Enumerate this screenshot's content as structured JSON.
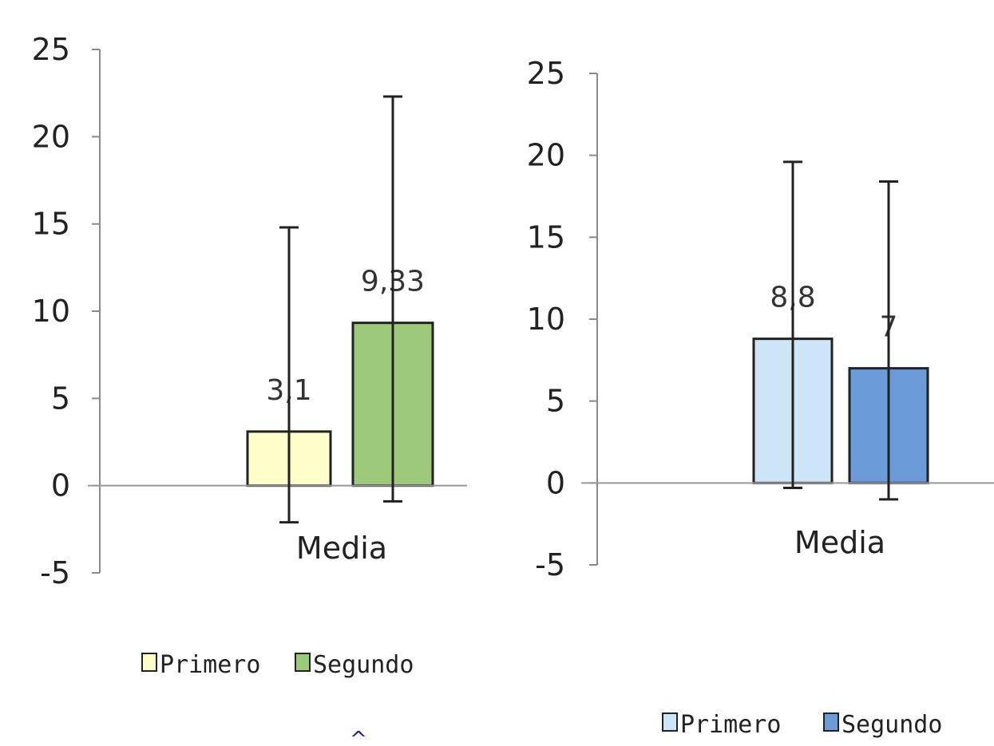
{
  "chart_data": [
    {
      "type": "bar",
      "categories": [
        "Media"
      ],
      "series": [
        {
          "name": "Primero",
          "values": [
            3.1
          ],
          "error_low": [
            -2.1
          ],
          "error_high": [
            14.8
          ],
          "color": "#ffffcc",
          "label": "3,1"
        },
        {
          "name": "Segundo",
          "values": [
            9.33
          ],
          "error_low": [
            -0.9
          ],
          "error_high": [
            22.3
          ],
          "color": "#9cc97a",
          "label": "9,33"
        }
      ],
      "yticks": [
        "-5",
        "0",
        "5",
        "10",
        "15",
        "20",
        "25"
      ],
      "ylim": [
        -5,
        25
      ],
      "grid": false,
      "legend": "bottom"
    },
    {
      "type": "bar",
      "categories": [
        "Media"
      ],
      "series": [
        {
          "name": "Primero",
          "values": [
            8.8
          ],
          "error_low": [
            -0.3
          ],
          "error_high": [
            19.6
          ],
          "color": "#cde6f7",
          "label": "8,8"
        },
        {
          "name": "Segundo",
          "values": [
            7
          ],
          "error_low": [
            -1.0
          ],
          "error_high": [
            18.4
          ],
          "color": "#6b9bd8",
          "label": "7"
        }
      ],
      "yticks": [
        "-5",
        "0",
        "5",
        "10",
        "15",
        "20",
        "25"
      ],
      "ylim": [
        -5,
        25
      ],
      "grid": false,
      "legend": "bottom"
    }
  ],
  "decorations": {
    "caret": "^"
  },
  "colors": {
    "axis": "#8a8a8a",
    "baseline": "#999999",
    "bar_stroke": "#222222",
    "error_bar": "#222222",
    "caret": "#1a1aa6"
  }
}
